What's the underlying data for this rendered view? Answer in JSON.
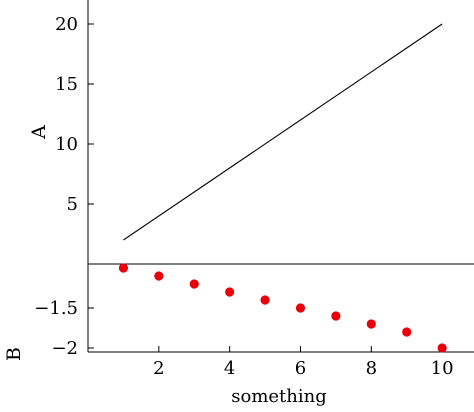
{
  "chart_data": [
    {
      "type": "line",
      "ylabel": "A",
      "xlim": [
        0.0,
        10.9
      ],
      "ylim": [
        0.0,
        22.0
      ],
      "yticks": [
        5,
        10,
        15,
        20
      ],
      "ytick_labels": [
        "5",
        "10",
        "15",
        "20"
      ],
      "series": [
        {
          "x": [
            1,
            10
          ],
          "values": [
            2,
            20
          ],
          "color": "#000000"
        }
      ]
    },
    {
      "type": "scatter",
      "xlabel": "something",
      "ylabel": "B",
      "xlim": [
        0.0,
        10.9
      ],
      "ylim": [
        -2.05,
        -0.95
      ],
      "xticks": [
        2,
        4,
        6,
        8,
        10
      ],
      "xtick_labels": [
        "2",
        "4",
        "6",
        "8",
        "10"
      ],
      "yticks": [
        -1.5,
        -2
      ],
      "ytick_labels": [
        "−1.5",
        "−2"
      ],
      "series": [
        {
          "x": [
            1,
            2,
            3,
            4,
            5,
            6,
            7,
            8,
            9,
            10
          ],
          "values": [
            -1.0,
            -1.1,
            -1.2,
            -1.3,
            -1.4,
            -1.5,
            -1.6,
            -1.7,
            -1.8,
            -2.0
          ],
          "color": "#e8000b"
        }
      ]
    }
  ]
}
